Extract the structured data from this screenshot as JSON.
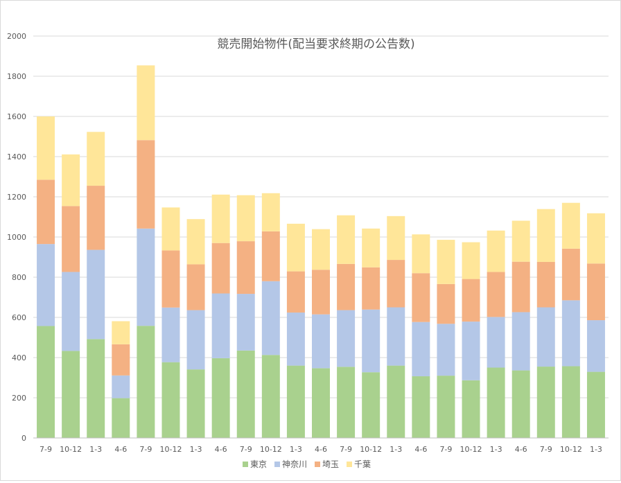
{
  "chart_data": {
    "type": "bar",
    "stacked": true,
    "title": "競売開始物件(配当要求終期の公告数)",
    "xlabel": "",
    "ylabel": "",
    "ylim": [
      0,
      2000
    ],
    "yticks": [
      0,
      200,
      400,
      600,
      800,
      1000,
      1200,
      1400,
      1600,
      1800,
      2000
    ],
    "grid": true,
    "legend_position": "bottom",
    "categories": [
      "7-9",
      "10-12",
      "1-3",
      "4-6",
      "7-9",
      "10-12",
      "1-3",
      "4-6",
      "7-9",
      "10-12",
      "1-3",
      "4-6",
      "7-9",
      "10-12",
      "1-3",
      "4-6",
      "7-9",
      "10-12",
      "1-3",
      "4-6",
      "7-9",
      "10-12",
      "1-3"
    ],
    "series": [
      {
        "name": "東京",
        "color": "#a9d18e",
        "values": [
          557,
          433,
          492,
          198,
          558,
          377,
          341,
          397,
          435,
          413,
          360,
          347,
          354,
          327,
          360,
          307,
          310,
          287,
          350,
          336,
          355,
          357,
          329
        ]
      },
      {
        "name": "神奈川",
        "color": "#b4c7e7",
        "values": [
          408,
          393,
          444,
          113,
          484,
          272,
          295,
          322,
          282,
          367,
          264,
          268,
          282,
          312,
          290,
          270,
          258,
          292,
          252,
          290,
          295,
          328,
          257
        ]
      },
      {
        "name": "埼玉",
        "color": "#f4b183",
        "values": [
          320,
          328,
          319,
          155,
          440,
          284,
          228,
          251,
          262,
          248,
          205,
          222,
          230,
          210,
          236,
          243,
          198,
          212,
          224,
          251,
          226,
          257,
          282
        ]
      },
      {
        "name": "千葉",
        "color": "#ffe699",
        "values": [
          315,
          257,
          268,
          115,
          372,
          214,
          225,
          241,
          229,
          190,
          237,
          202,
          242,
          193,
          218,
          193,
          220,
          183,
          206,
          204,
          263,
          228,
          250
        ]
      }
    ]
  }
}
